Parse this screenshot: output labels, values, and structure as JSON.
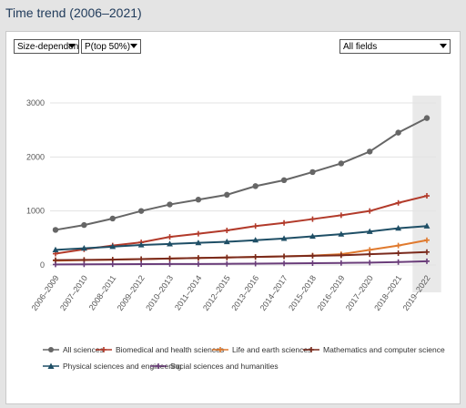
{
  "page": {
    "title": "Time trend (2006–2021)"
  },
  "controls": {
    "indicator_type": "Size-dependent",
    "indicator": "P(top 50%)",
    "field": "All fields"
  },
  "chart_data": {
    "type": "line",
    "title": "",
    "xlabel": "",
    "ylabel": "",
    "ylim": [
      0,
      3000
    ],
    "yticks": [
      "0",
      "1000",
      "2000",
      "3000"
    ],
    "categories": [
      "2006–2009",
      "2007–2010",
      "2008–2011",
      "2009–2012",
      "2010–2013",
      "2011–2014",
      "2012–2015",
      "2013–2016",
      "2014–2017",
      "2015–2018",
      "2016–2019",
      "2017–2020",
      "2018–2021",
      "2019–2022"
    ],
    "highlight_last_category": true,
    "grid": "horizontal",
    "legend_placement": "bottom",
    "series": [
      {
        "name": "All sciences",
        "color": "#666666",
        "marker": "circle",
        "values": [
          650,
          740,
          860,
          1000,
          1120,
          1210,
          1300,
          1460,
          1570,
          1720,
          1880,
          2100,
          2450,
          2720
        ]
      },
      {
        "name": "Biomedical and health sciences",
        "color": "#b23a2a",
        "marker": "plus",
        "values": [
          210,
          290,
          360,
          420,
          520,
          580,
          640,
          720,
          780,
          850,
          920,
          1000,
          1150,
          1280
        ]
      },
      {
        "name": "Life and earth sciences",
        "color": "#e07a2e",
        "marker": "plus",
        "values": [
          80,
          90,
          100,
          110,
          120,
          130,
          140,
          150,
          160,
          175,
          200,
          280,
          360,
          460
        ]
      },
      {
        "name": "Mathematics and computer science",
        "color": "#7a2a1c",
        "marker": "plus",
        "values": [
          90,
          95,
          100,
          110,
          120,
          130,
          140,
          150,
          160,
          170,
          180,
          200,
          220,
          240
        ]
      },
      {
        "name": "Physical sciences and engineering",
        "color": "#1f4f66",
        "marker": "triangle",
        "values": [
          280,
          310,
          340,
          370,
          390,
          410,
          430,
          460,
          490,
          530,
          570,
          620,
          680,
          720
        ]
      },
      {
        "name": "Social sciences and humanities",
        "color": "#6a3d7a",
        "marker": "plus",
        "values": [
          10,
          12,
          14,
          16,
          18,
          20,
          22,
          26,
          30,
          34,
          38,
          45,
          55,
          70
        ]
      }
    ]
  }
}
